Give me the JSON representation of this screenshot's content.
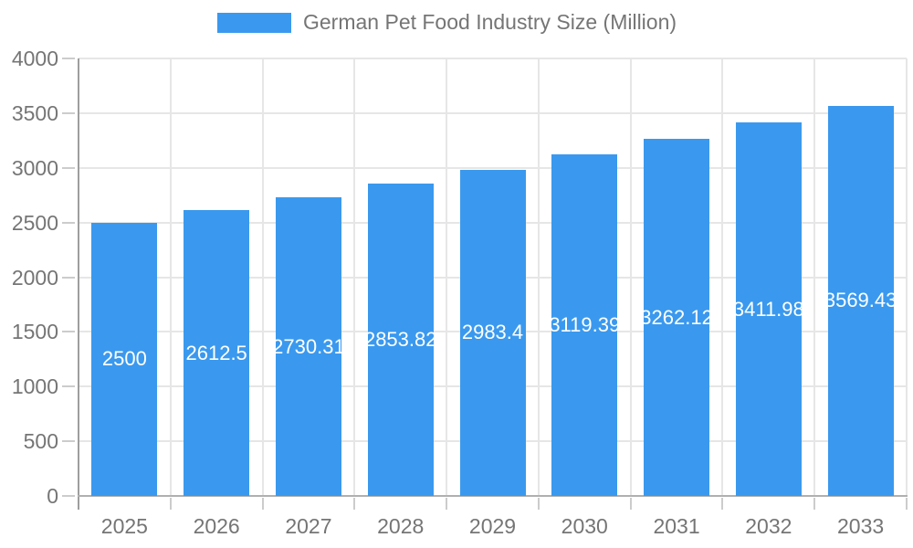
{
  "chart_data": {
    "type": "bar",
    "legend": "German Pet Food Industry Size (Million)",
    "legend_position": "top",
    "categories": [
      "2025",
      "2026",
      "2027",
      "2028",
      "2029",
      "2030",
      "2031",
      "2032",
      "2033"
    ],
    "series": [
      {
        "name": "German Pet Food Industry Size (Million)",
        "values": [
          2500,
          2612.5,
          2730.31,
          2853.82,
          2983.4,
          3119.39,
          3262.12,
          3411.98,
          3569.43
        ]
      }
    ],
    "bar_labels": [
      "2500",
      "2612.5",
      "2730.31",
      "2853.82",
      "2983.4",
      "3119.39",
      "3262.12",
      "3411.98",
      "3569.43"
    ],
    "xlabel": "",
    "ylabel": "",
    "ylim": [
      0,
      4000
    ],
    "ytick_step": 500,
    "ytick_labels": [
      "0",
      "500",
      "1000",
      "1500",
      "2000",
      "2500",
      "3000",
      "3500",
      "4000"
    ],
    "grid": true,
    "colors": {
      "bar": "#3a99ee",
      "bar_label_text": "#ffffff",
      "axis_text": "#757575",
      "gridline": "#e6e6e6",
      "y_axis_line": "#9e9e9e",
      "x_axis_line": "#b0b0b0",
      "tick": "#cccccc",
      "legend_text": "#757575"
    }
  }
}
